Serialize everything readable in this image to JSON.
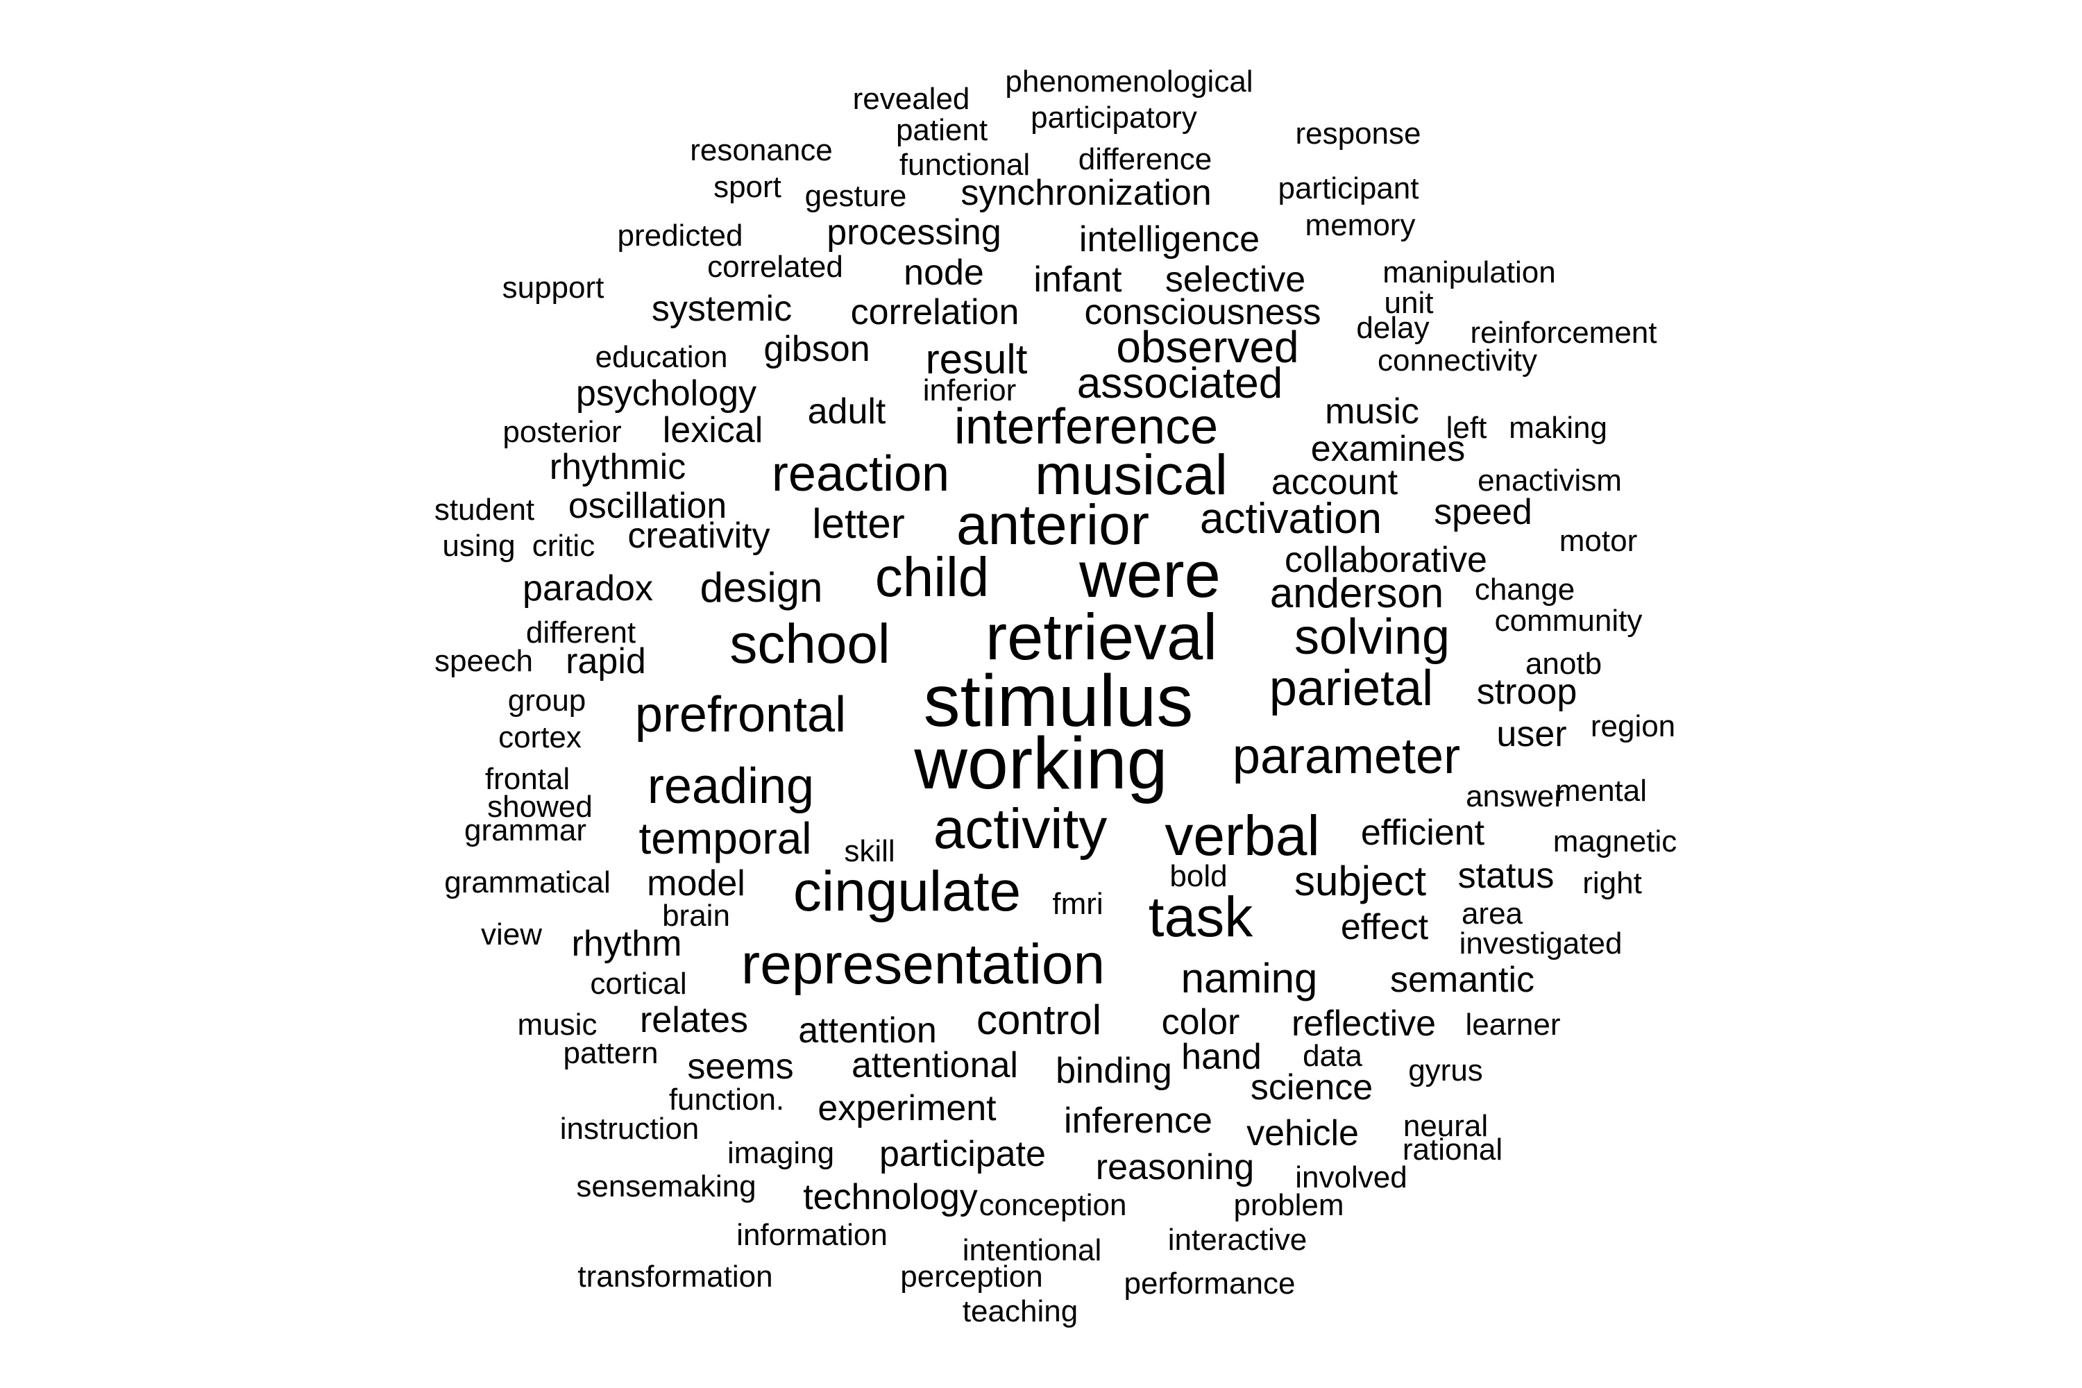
{
  "word_cloud": {
    "text_color": "#000000",
    "background_color": "#ffffff",
    "words": [
      {
        "text": "working"
      },
      {
        "text": "stimulus"
      },
      {
        "text": "retrieval"
      },
      {
        "text": "were"
      },
      {
        "text": "representation"
      },
      {
        "text": "cingulate"
      },
      {
        "text": "task"
      },
      {
        "text": "anterior"
      },
      {
        "text": "musical"
      },
      {
        "text": "activity"
      },
      {
        "text": "verbal"
      },
      {
        "text": "school"
      },
      {
        "text": "child"
      },
      {
        "text": "prefrontal"
      },
      {
        "text": "parameter"
      },
      {
        "text": "parietal"
      },
      {
        "text": "solving"
      },
      {
        "text": "reading"
      },
      {
        "text": "reaction"
      },
      {
        "text": "interference"
      },
      {
        "text": "temporal"
      },
      {
        "text": "anderson"
      },
      {
        "text": "activation"
      },
      {
        "text": "associated"
      },
      {
        "text": "observed"
      },
      {
        "text": "subject"
      },
      {
        "text": "design"
      },
      {
        "text": "letter"
      },
      {
        "text": "control"
      },
      {
        "text": "naming"
      },
      {
        "text": "result"
      },
      {
        "text": "collaborative"
      },
      {
        "text": "reflective"
      },
      {
        "text": "semantic"
      },
      {
        "text": "efficient"
      },
      {
        "text": "consciousness"
      },
      {
        "text": "synchronization"
      },
      {
        "text": "intelligence"
      },
      {
        "text": "processing"
      },
      {
        "text": "correlation"
      },
      {
        "text": "selective"
      },
      {
        "text": "creativity"
      },
      {
        "text": "paradox"
      },
      {
        "text": "rhythmic"
      },
      {
        "text": "psychology"
      },
      {
        "text": "oscillation"
      },
      {
        "text": "examines"
      },
      {
        "text": "account"
      },
      {
        "text": "music"
      },
      {
        "text": "speed"
      },
      {
        "text": "stroop"
      },
      {
        "text": "status"
      },
      {
        "text": "user"
      },
      {
        "text": "effect"
      },
      {
        "text": "model"
      },
      {
        "text": "rapid"
      },
      {
        "text": "rhythm"
      },
      {
        "text": "lexical"
      },
      {
        "text": "adult"
      },
      {
        "text": "gibson"
      },
      {
        "text": "systemic"
      },
      {
        "text": "node"
      },
      {
        "text": "infant"
      },
      {
        "text": "attention"
      },
      {
        "text": "attentional"
      },
      {
        "text": "relates"
      },
      {
        "text": "seems"
      },
      {
        "text": "experiment"
      },
      {
        "text": "binding"
      },
      {
        "text": "color"
      },
      {
        "text": "hand"
      },
      {
        "text": "science"
      },
      {
        "text": "inference"
      },
      {
        "text": "vehicle"
      },
      {
        "text": "participate"
      },
      {
        "text": "reasoning"
      },
      {
        "text": "technology"
      },
      {
        "text": "phenomenological"
      },
      {
        "text": "revealed"
      },
      {
        "text": "participatory"
      },
      {
        "text": "patient"
      },
      {
        "text": "response"
      },
      {
        "text": "resonance"
      },
      {
        "text": "functional"
      },
      {
        "text": "difference"
      },
      {
        "text": "sport"
      },
      {
        "text": "gesture"
      },
      {
        "text": "participant"
      },
      {
        "text": "predicted"
      },
      {
        "text": "memory"
      },
      {
        "text": "correlated"
      },
      {
        "text": "support"
      },
      {
        "text": "manipulation"
      },
      {
        "text": "unit"
      },
      {
        "text": "delay"
      },
      {
        "text": "reinforcement"
      },
      {
        "text": "education"
      },
      {
        "text": "connectivity"
      },
      {
        "text": "inferior"
      },
      {
        "text": "posterior"
      },
      {
        "text": "left"
      },
      {
        "text": "making"
      },
      {
        "text": "enactivism"
      },
      {
        "text": "student"
      },
      {
        "text": "using"
      },
      {
        "text": "critic"
      },
      {
        "text": "motor"
      },
      {
        "text": "change"
      },
      {
        "text": "community"
      },
      {
        "text": "different"
      },
      {
        "text": "speech"
      },
      {
        "text": "anotb"
      },
      {
        "text": "group"
      },
      {
        "text": "cortex"
      },
      {
        "text": "region"
      },
      {
        "text": "frontal"
      },
      {
        "text": "showed"
      },
      {
        "text": "answer"
      },
      {
        "text": "mental"
      },
      {
        "text": "grammar"
      },
      {
        "text": "skill"
      },
      {
        "text": "magnetic"
      },
      {
        "text": "grammatical"
      },
      {
        "text": "bold"
      },
      {
        "text": "right"
      },
      {
        "text": "fmri"
      },
      {
        "text": "brain"
      },
      {
        "text": "area"
      },
      {
        "text": "view"
      },
      {
        "text": "investigated"
      },
      {
        "text": "cortical"
      },
      {
        "text": "music"
      },
      {
        "text": "learner"
      },
      {
        "text": "pattern"
      },
      {
        "text": "data"
      },
      {
        "text": "gyrus"
      },
      {
        "text": "function."
      },
      {
        "text": "instruction"
      },
      {
        "text": "neural"
      },
      {
        "text": "rational"
      },
      {
        "text": "imaging"
      },
      {
        "text": "involved"
      },
      {
        "text": "sensemaking"
      },
      {
        "text": "conception"
      },
      {
        "text": "problem"
      },
      {
        "text": "information"
      },
      {
        "text": "interactive"
      },
      {
        "text": "intentional"
      },
      {
        "text": "transformation"
      },
      {
        "text": "perception"
      },
      {
        "text": "performance"
      },
      {
        "text": "teaching"
      }
    ]
  }
}
